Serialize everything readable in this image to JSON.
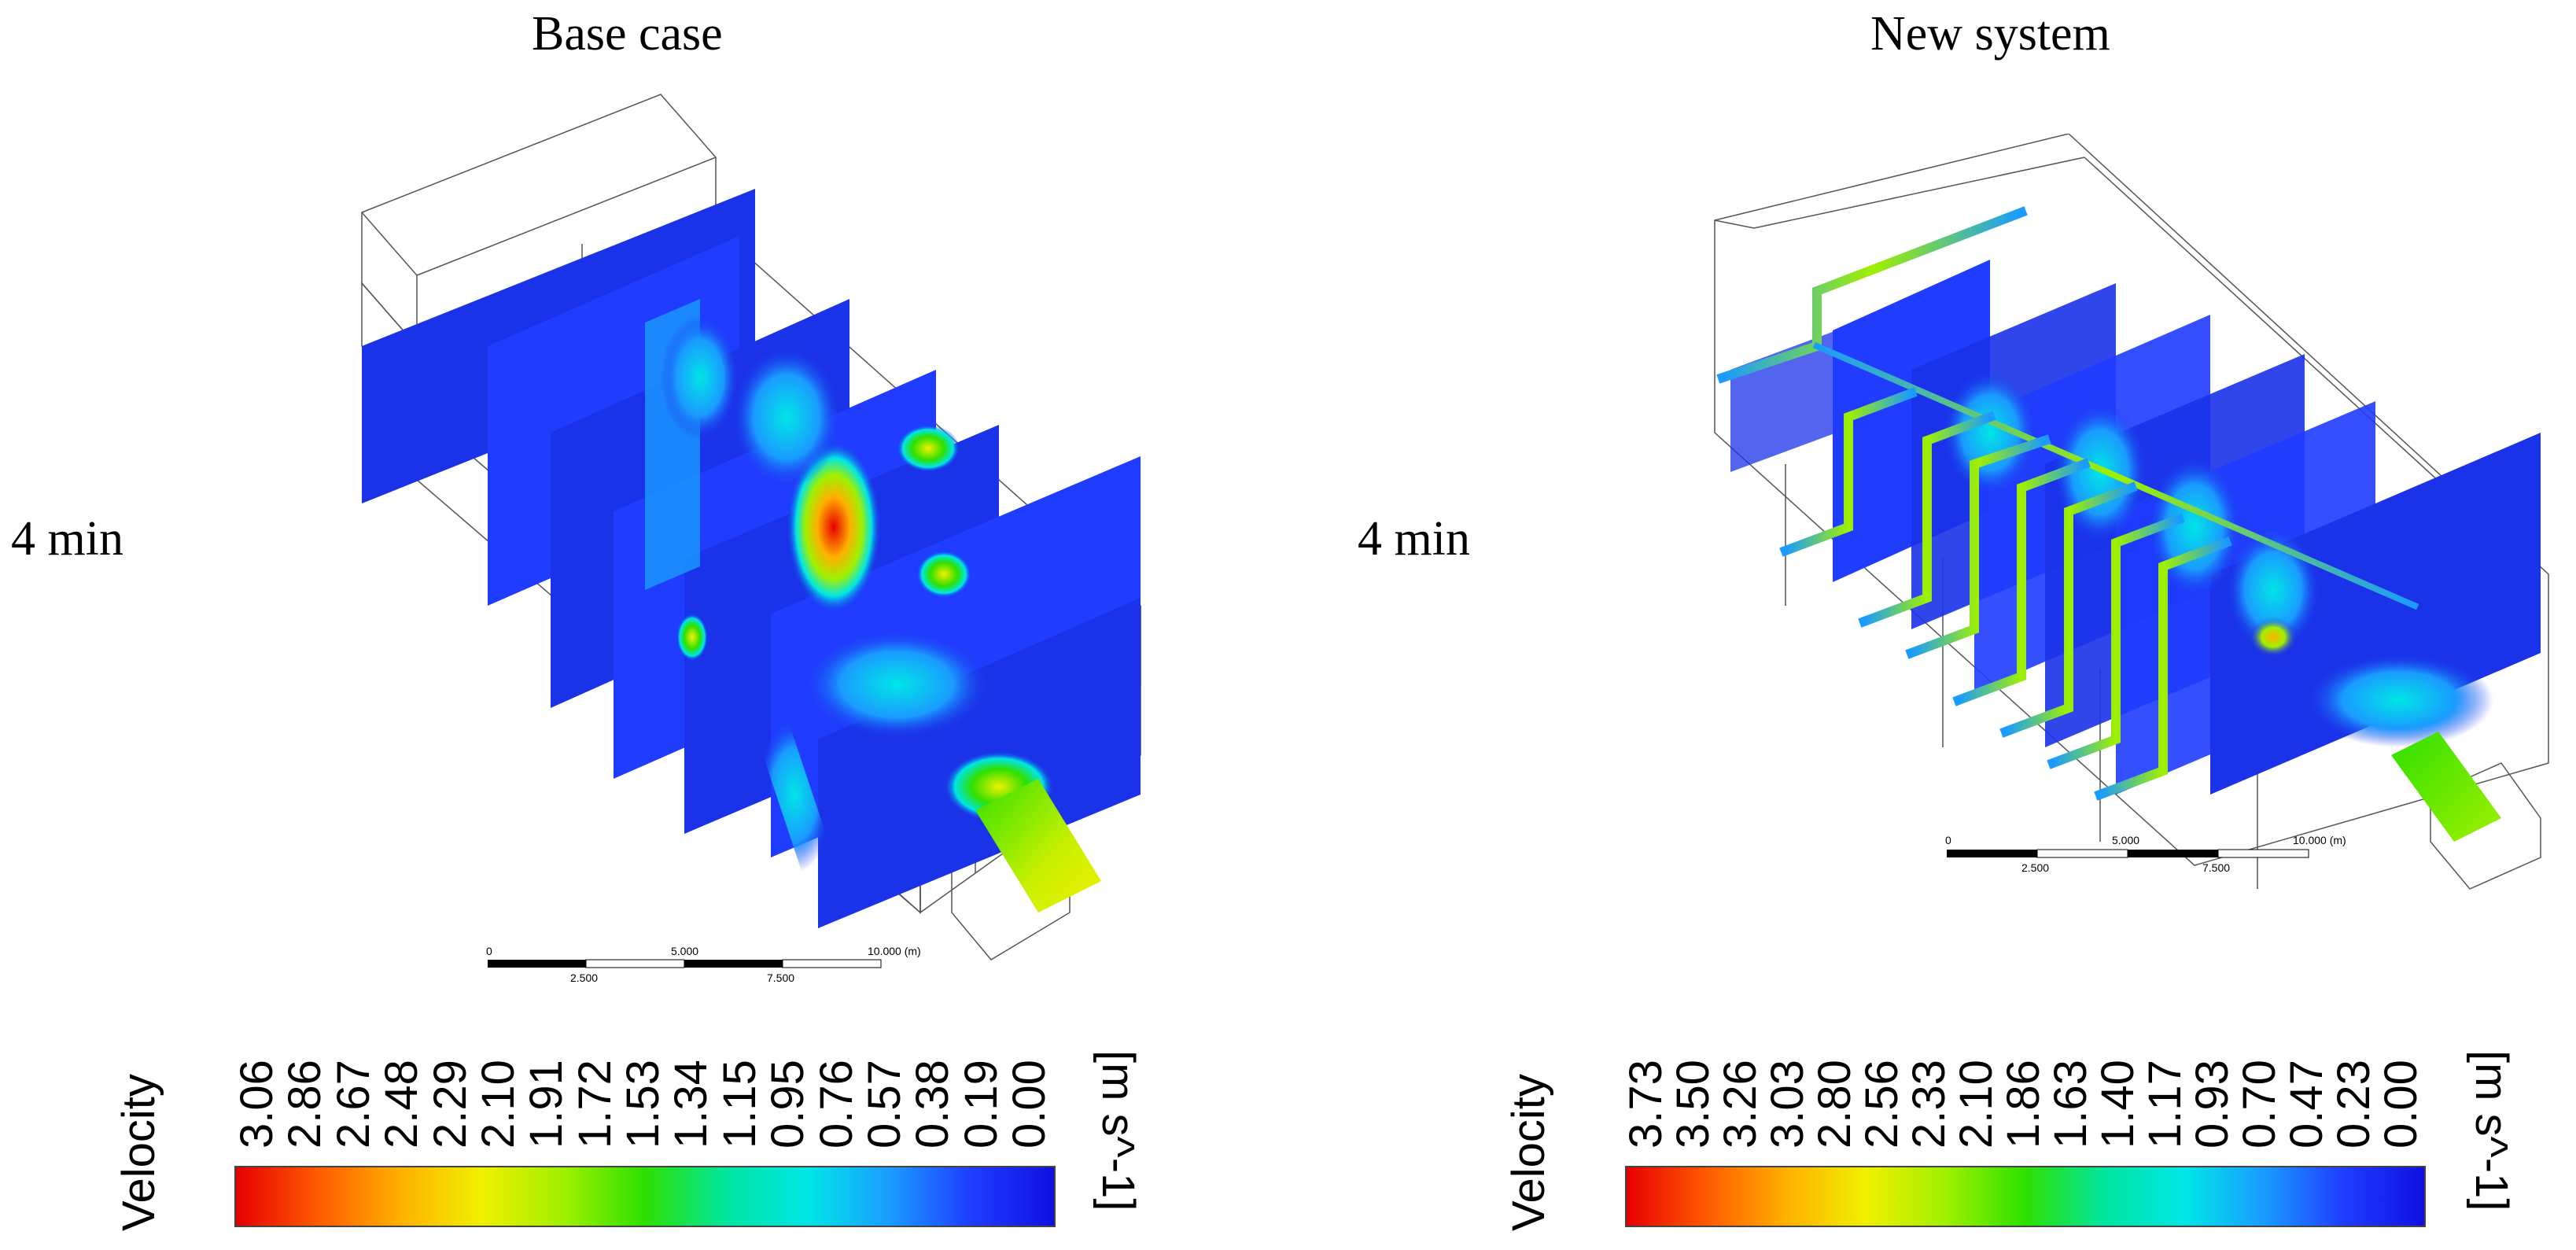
{
  "panels": [
    {
      "title": "Base case",
      "time_label": "4 min",
      "scalebar": {
        "top_labels": [
          "0",
          "5.000",
          "10.000  (m)"
        ],
        "bottom_labels": [
          "2.500",
          "7.500"
        ]
      },
      "legend": {
        "title": "Velocity",
        "unit": "[m s^-1]",
        "ticks": [
          "3.06",
          "2.86",
          "2.67",
          "2.48",
          "2.29",
          "2.10",
          "1.91",
          "1.72",
          "1.53",
          "1.34",
          "1.15",
          "0.95",
          "0.76",
          "0.57",
          "0.38",
          "0.19",
          "0.00"
        ]
      }
    },
    {
      "title": "New system",
      "time_label": "4 min",
      "scalebar": {
        "top_labels": [
          "0",
          "5.000",
          "10.000  (m)"
        ],
        "bottom_labels": [
          "2.500",
          "7.500"
        ]
      },
      "legend": {
        "title": "Velocity",
        "unit": "[m s^-1]",
        "ticks": [
          "3.73",
          "3.50",
          "3.26",
          "3.03",
          "2.80",
          "2.56",
          "2.33",
          "2.10",
          "1.86",
          "1.63",
          "1.40",
          "1.17",
          "0.93",
          "0.70",
          "0.47",
          "0.23",
          "0.00"
        ]
      }
    }
  ],
  "colors": {
    "colormap": [
      "#e60000",
      "#ff5a00",
      "#ffb000",
      "#f0f000",
      "#a0f000",
      "#2ee000",
      "#00e6a0",
      "#00e6e6",
      "#1a9bff",
      "#1f3cff",
      "#1010e0"
    ],
    "contour_blue": "#1a32e8",
    "wireframe": "#555555"
  }
}
